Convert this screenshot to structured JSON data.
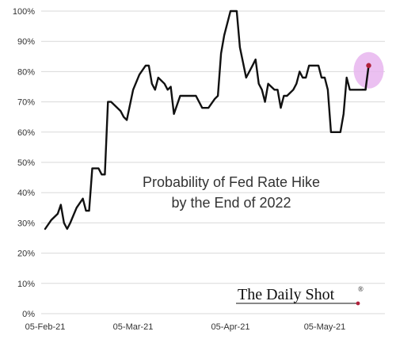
{
  "chart_data": {
    "type": "line",
    "title_lines": [
      "Probability of Fed Rate Hike",
      "by the End of 2022"
    ],
    "xlabel": "",
    "ylabel": "",
    "ylim": [
      0,
      100
    ],
    "grid": "horizontal",
    "y_ticks": [
      0,
      10,
      20,
      30,
      40,
      50,
      60,
      70,
      80,
      90,
      100
    ],
    "y_tick_labels": [
      "0%",
      "10%",
      "20%",
      "30%",
      "40%",
      "50%",
      "60%",
      "70%",
      "80%",
      "90%",
      "100%"
    ],
    "x_ticks": [
      "2021-02-05",
      "2021-03-05",
      "2021-04-05",
      "2021-05-05"
    ],
    "x_tick_labels": [
      "05-Feb-21",
      "05-Mar-21",
      "05-Apr-21",
      "05-May-21"
    ],
    "x_range": [
      "2021-02-05",
      "2021-05-20"
    ],
    "series": [
      {
        "color": "#111111",
        "x": [
          "2021-02-05",
          "2021-02-07",
          "2021-02-09",
          "2021-02-10",
          "2021-02-11",
          "2021-02-12",
          "2021-02-13",
          "2021-02-15",
          "2021-02-17",
          "2021-02-18",
          "2021-02-19",
          "2021-02-20",
          "2021-02-22",
          "2021-02-23",
          "2021-02-24",
          "2021-02-25",
          "2021-02-26",
          "2021-03-01",
          "2021-03-02",
          "2021-03-03",
          "2021-03-05",
          "2021-03-07",
          "2021-03-09",
          "2021-03-10",
          "2021-03-11",
          "2021-03-12",
          "2021-03-13",
          "2021-03-15",
          "2021-03-16",
          "2021-03-17",
          "2021-03-18",
          "2021-03-20",
          "2021-03-22",
          "2021-03-24",
          "2021-03-25",
          "2021-03-27",
          "2021-03-29",
          "2021-03-31",
          "2021-04-01",
          "2021-04-02",
          "2021-04-03",
          "2021-04-05",
          "2021-04-06",
          "2021-04-07",
          "2021-04-08",
          "2021-04-10",
          "2021-04-12",
          "2021-04-13",
          "2021-04-14",
          "2021-04-15",
          "2021-04-16",
          "2021-04-17",
          "2021-04-19",
          "2021-04-20",
          "2021-04-21",
          "2021-04-22",
          "2021-04-23",
          "2021-04-25",
          "2021-04-26",
          "2021-04-27",
          "2021-04-28",
          "2021-04-29",
          "2021-04-30",
          "2021-05-03",
          "2021-05-04",
          "2021-05-05",
          "2021-05-06",
          "2021-05-07",
          "2021-05-08",
          "2021-05-10",
          "2021-05-11",
          "2021-05-12",
          "2021-05-13",
          "2021-05-14",
          "2021-05-15",
          "2021-05-17",
          "2021-05-18",
          "2021-05-19"
        ],
        "values": [
          28,
          31,
          33,
          36,
          30,
          28,
          30,
          35,
          38,
          34,
          34,
          48,
          48,
          46,
          46,
          70,
          70,
          67,
          65,
          64,
          74,
          79,
          82,
          82,
          76,
          74,
          78,
          76,
          74,
          75,
          66,
          72,
          72,
          72,
          72,
          68,
          68,
          71,
          72,
          86,
          92,
          100,
          100,
          100,
          88,
          78,
          82,
          84,
          76,
          74,
          70,
          76,
          74,
          74,
          68,
          72,
          72,
          74,
          76,
          80,
          78,
          78,
          82,
          82,
          78,
          78,
          74,
          60,
          60,
          60,
          66,
          78,
          74,
          74,
          74,
          74,
          74,
          82
        ]
      }
    ],
    "highlight_point": {
      "x": "2021-05-19",
      "value": 82,
      "color": "#b0213b",
      "halo_color": "#e7b5ee"
    }
  },
  "logo": {
    "text": "The Daily Shot",
    "mark": "®",
    "dot_color": "#b0213b"
  }
}
